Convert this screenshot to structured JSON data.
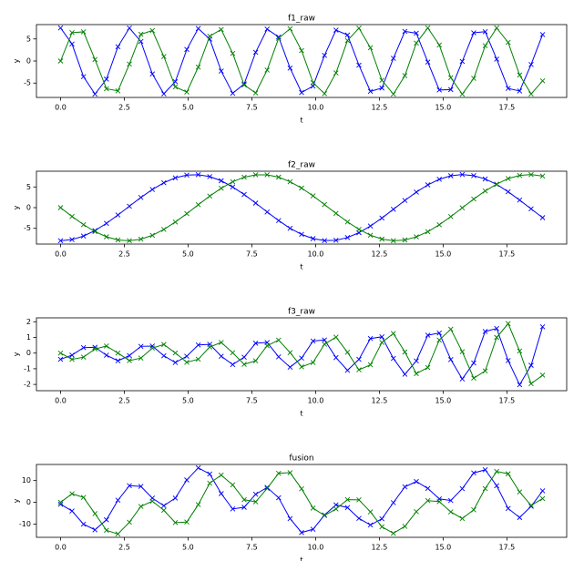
{
  "chart_data": [
    {
      "type": "line",
      "title": "f1_raw",
      "xlabel": "t",
      "ylabel": "y",
      "x": [
        0,
        0.45,
        0.9,
        1.35,
        1.8,
        2.25,
        2.7,
        3.15,
        3.6,
        4.05,
        4.5,
        4.95,
        5.4,
        5.85,
        6.3,
        6.75,
        7.2,
        7.65,
        8.1,
        8.55,
        9,
        9.45,
        9.9,
        10.35,
        10.8,
        11.25,
        11.7,
        12.15,
        12.6,
        13.05,
        13.5,
        13.95,
        14.4,
        14.85,
        15.3,
        15.75,
        16.2,
        16.65,
        17.1,
        17.55,
        18,
        18.45,
        18.9
      ],
      "xlim": [
        -0.945,
        19.845
      ],
      "xticks": [
        {
          "value": 0,
          "label": "0.0"
        },
        2.5,
        {
          "value": 5,
          "label": "5.0"
        },
        7.5,
        {
          "value": 10,
          "label": "10.0"
        },
        12.5,
        {
          "value": 15,
          "label": "15.0"
        },
        17.5
      ],
      "ylim": [
        -8.25,
        8.25
      ],
      "yticks": [
        -5,
        0,
        5
      ],
      "series": [
        {
          "color": "#0000ff",
          "values": [
            7.5,
            3.86,
            -3.55,
            -7.49,
            -4.1,
            3.24,
            7.47,
            4.42,
            -2.93,
            -7.43,
            -4.67,
            2.62,
            7.37,
            4.96,
            -2.29,
            -7.3,
            -5.19,
            1.97,
            7.22,
            5.45,
            -1.62,
            -7.12,
            -5.68,
            1.28,
            7,
            5.9,
            -0.94,
            -6.88,
            -6.11,
            0.6,
            6.72,
            6.3,
            -0.25,
            -6.56,
            -6.47,
            -0.09,
            6.39,
            6.65,
            0.43,
            -6.21,
            -6.8,
            -0.78,
            6
          ]
        },
        {
          "color": "#008000",
          "values": [
            0,
            6.43,
            6.61,
            0.34,
            -6.28,
            -6.76,
            -0.69,
            6.06,
            6.9,
            1.03,
            -5.87,
            -7.03,
            -1.37,
            5.63,
            7.14,
            1.71,
            -5.42,
            -7.24,
            -2.04,
            5.15,
            7.32,
            2.37,
            -4.9,
            -7.39,
            -2.69,
            4.63,
            7.44,
            3,
            -4.36,
            -7.48,
            -3.32,
            4.07,
            7.5,
            3.63,
            -3.78,
            -7.5,
            -3.92,
            3.47,
            7.49,
            4.21,
            -3.17,
            -7.46,
            -4.49
          ]
        }
      ]
    },
    {
      "type": "line",
      "title": "f2_raw",
      "xlabel": "t",
      "ylabel": "y",
      "x": [
        0,
        0.45,
        0.9,
        1.35,
        1.8,
        2.25,
        2.7,
        3.15,
        3.6,
        4.05,
        4.5,
        4.95,
        5.4,
        5.85,
        6.3,
        6.75,
        7.2,
        7.65,
        8.1,
        8.55,
        9,
        9.45,
        9.9,
        10.35,
        10.8,
        11.25,
        11.7,
        12.15,
        12.6,
        13.05,
        13.5,
        13.95,
        14.4,
        14.85,
        15.3,
        15.75,
        16.2,
        16.65,
        17.1,
        17.55,
        18,
        18.45,
        18.9
      ],
      "xlim": [
        -0.945,
        19.845
      ],
      "xticks": [
        {
          "value": 0,
          "label": "0.0"
        },
        2.5,
        {
          "value": 5,
          "label": "5.0"
        },
        7.5,
        {
          "value": 10,
          "label": "10.0"
        },
        12.5,
        {
          "value": 15,
          "label": "15.0"
        },
        17.5
      ],
      "ylim": [
        -8.8,
        8.8
      ],
      "yticks": [
        -5,
        0,
        5
      ],
      "series": [
        {
          "color": "#0000ff",
          "values": [
            -8,
            -7.71,
            -6.87,
            -5.53,
            -3.8,
            -1.78,
            0.35,
            2.46,
            4.39,
            6.02,
            7.2,
            7.86,
            7.96,
            7.5,
            6.49,
            4.98,
            3.17,
            1.1,
            -1.05,
            -3.12,
            -4.98,
            -6.46,
            -7.48,
            -7.96,
            -7.88,
            -7.22,
            -6.05,
            -4.45,
            -2.51,
            -0.4,
            1.74,
            3.75,
            5.5,
            6.85,
            7.7,
            8,
            7.73,
            6.92,
            5.62,
            3.84,
            1.83,
            -0.3,
            -2.42
          ]
        },
        {
          "color": "#008000",
          "values": [
            0,
            -2.13,
            -4.1,
            -5.78,
            -7.04,
            -7.8,
            -7.99,
            -7.61,
            -6.69,
            -5.27,
            -3.48,
            -1.45,
            0.7,
            2.79,
            4.68,
            6.26,
            7.35,
            7.93,
            7.93,
            7.37,
            6.26,
            4.73,
            2.84,
            0.75,
            -1.39,
            -3.44,
            -5.24,
            -6.66,
            -7.59,
            -7.99,
            -7.81,
            -7.06,
            -5.81,
            -4.14,
            -2.17,
            -0.05,
            2.08,
            4.02,
            5.69,
            7.02,
            7.78,
            7.99,
            7.62
          ]
        }
      ]
    },
    {
      "type": "line",
      "title": "f3_raw",
      "xlabel": "t",
      "ylabel": "y",
      "x": [
        0,
        0.45,
        0.9,
        1.35,
        1.8,
        2.25,
        2.7,
        3.15,
        3.6,
        4.05,
        4.5,
        4.95,
        5.4,
        5.85,
        6.3,
        6.75,
        7.2,
        7.65,
        8.1,
        8.55,
        9,
        9.45,
        9.9,
        10.35,
        10.8,
        11.25,
        11.7,
        12.15,
        12.6,
        13.05,
        13.5,
        13.95,
        14.4,
        14.85,
        15.3,
        15.75,
        16.2,
        16.65,
        17.1,
        17.55,
        18,
        18.45,
        18.9
      ],
      "xlim": [
        -0.945,
        19.845
      ],
      "xticks": [
        {
          "value": 0,
          "label": "0.0"
        },
        2.5,
        {
          "value": 5,
          "label": "5.0"
        },
        7.5,
        {
          "value": 10,
          "label": "10.0"
        },
        12.5,
        {
          "value": 15,
          "label": "15.0"
        },
        17.5
      ],
      "ylim": [
        -2.4,
        2.25
      ],
      "yticks": [
        -2,
        -1,
        0,
        1,
        2
      ],
      "series": [
        {
          "color": "#0000ff",
          "values": [
            -0.4,
            -0.13,
            0.35,
            0.37,
            -0.14,
            -0.49,
            -0.16,
            0.43,
            0.45,
            -0.17,
            -0.6,
            -0.2,
            0.52,
            0.56,
            -0.2,
            -0.73,
            -0.26,
            0.63,
            0.68,
            -0.24,
            -0.9,
            -0.32,
            0.77,
            0.84,
            -0.29,
            -1.1,
            -0.4,
            0.93,
            1.04,
            -0.34,
            -1.35,
            -0.5,
            1.14,
            1.28,
            -0.41,
            -1.65,
            -0.63,
            1.38,
            1.57,
            -0.48,
            -2.02,
            -0.78,
            1.68
          ]
        },
        {
          "color": "#008000",
          "values": [
            0,
            -0.4,
            -0.26,
            0.26,
            0.45,
            0,
            -0.48,
            -0.32,
            0.32,
            0.55,
            0.01,
            -0.59,
            -0.39,
            0.39,
            0.68,
            0.02,
            -0.72,
            -0.49,
            0.47,
            0.83,
            0.03,
            -0.88,
            -0.6,
            0.57,
            1.02,
            0.05,
            -1.07,
            -0.75,
            0.68,
            1.25,
            0.07,
            -1.31,
            -0.92,
            0.83,
            1.53,
            0.09,
            -1.6,
            -1.14,
            1,
            1.88,
            0.13,
            -1.95,
            -1.41
          ]
        }
      ]
    },
    {
      "type": "line",
      "title": "fusion",
      "xlabel": "t",
      "ylabel": "y",
      "x": [
        0,
        0.45,
        0.9,
        1.35,
        1.8,
        2.25,
        2.7,
        3.15,
        3.6,
        4.05,
        4.5,
        4.95,
        5.4,
        5.85,
        6.3,
        6.75,
        7.2,
        7.65,
        8.1,
        8.55,
        9,
        9.45,
        9.9,
        10.35,
        10.8,
        11.25,
        11.7,
        12.15,
        12.6,
        13.05,
        13.5,
        13.95,
        14.4,
        14.85,
        15.3,
        15.75,
        16.2,
        16.65,
        17.1,
        17.55,
        18,
        18.45,
        18.9
      ],
      "xlim": [
        -0.945,
        19.845
      ],
      "xticks": [
        {
          "value": 0,
          "label": "0.0"
        },
        2.5,
        {
          "value": 5,
          "label": "5.0"
        },
        7.5,
        {
          "value": 10,
          "label": "10.0"
        },
        12.5,
        {
          "value": 15,
          "label": "15.0"
        },
        17.5
      ],
      "ylim": [
        -16.1,
        17.4
      ],
      "yticks": [
        -10,
        0,
        10
      ],
      "series": [
        {
          "color": "#0000ff",
          "values": [
            -0.9,
            -3.98,
            -10.07,
            -12.65,
            -8.04,
            0.97,
            7.66,
            7.31,
            1.91,
            -1.58,
            1.93,
            10.28,
            15.85,
            13.02,
            4,
            -3.05,
            -2.28,
            3.7,
            6.85,
            2.09,
            -7.5,
            -13.9,
            -12.39,
            -5.84,
            -1.17,
            -2.42,
            -7.39,
            -10.4,
            -7.58,
            -0.14,
            7.11,
            9.55,
            6.39,
            1.57,
            0.82,
            6.26,
            13.49,
            14.95,
            7.62,
            -2.85,
            -6.99,
            -1.86,
            5.26
          ]
        },
        {
          "color": "#008000",
          "values": [
            0,
            3.9,
            2.25,
            -5.18,
            -12.87,
            -14.56,
            -9.16,
            -1.87,
            0.53,
            -3.69,
            -9.34,
            -9.07,
            -1.06,
            8.81,
            12.5,
            7.99,
            1.21,
            0.2,
            6.36,
            13.35,
            13.61,
            6.22,
            -2.66,
            -6.07,
            -3.06,
            1.24,
            1.13,
            -4.41,
            -11.27,
            -14.22,
            -11.06,
            -4.3,
            0.77,
            0.32,
            -4.42,
            -7.46,
            -3.44,
            6.35,
            14.18,
            13.11,
            4.74,
            -1.42,
            1.72
          ]
        }
      ]
    }
  ]
}
